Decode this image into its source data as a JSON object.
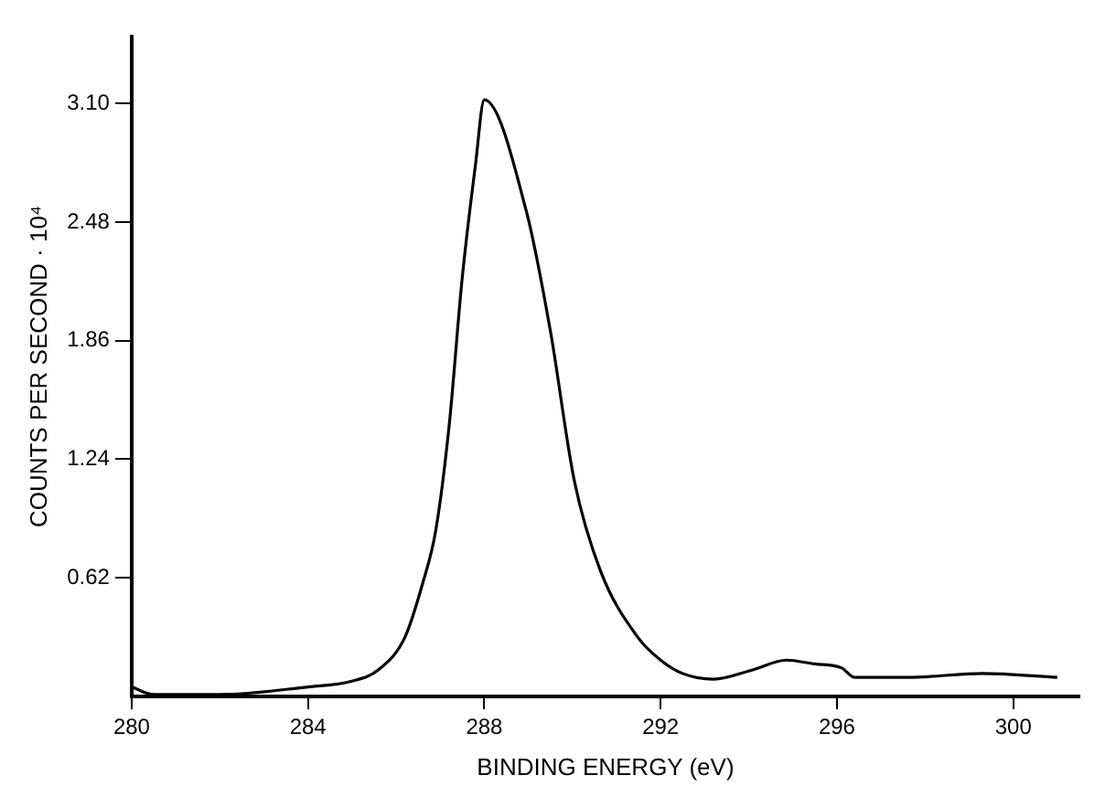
{
  "chart_data": {
    "type": "line",
    "xlabel": "BINDING ENERGY (eV)",
    "ylabel": "COUNTS PER SECOND · 10⁴",
    "xlim": [
      280,
      301.5
    ],
    "ylim": [
      0,
      3.45
    ],
    "xticks": [
      280,
      284,
      288,
      292,
      296,
      300
    ],
    "yticks": [
      0.62,
      1.24,
      1.86,
      {
        "value": 2.48,
        "label": "2.48"
      },
      {
        "value": 3.1,
        "label": "3.10"
      }
    ],
    "grid": false,
    "legend": false,
    "marker": "none",
    "line_style": "solid",
    "series": [
      {
        "color": "#000000",
        "x": [
          280,
          280.5,
          282,
          284,
          285,
          285.6,
          286.2,
          286.6,
          286.9,
          287.2,
          287.5,
          287.8,
          288,
          288.95,
          289.5,
          290.04,
          290.63,
          291.48,
          292,
          292.5,
          293.2,
          294.1,
          294.85,
          295.5,
          296.1,
          296.4,
          297.6,
          299.3,
          301
        ],
        "values": [
          0.05,
          0.01,
          0.01,
          0.05,
          0.08,
          0.14,
          0.31,
          0.59,
          0.87,
          1.41,
          2.19,
          2.78,
          3.12,
          2.54,
          1.91,
          1.13,
          0.66,
          0.31,
          0.19,
          0.12,
          0.09,
          0.14,
          0.19,
          0.17,
          0.15,
          0.1,
          0.1,
          0.12,
          0.1
        ]
      }
    ]
  }
}
